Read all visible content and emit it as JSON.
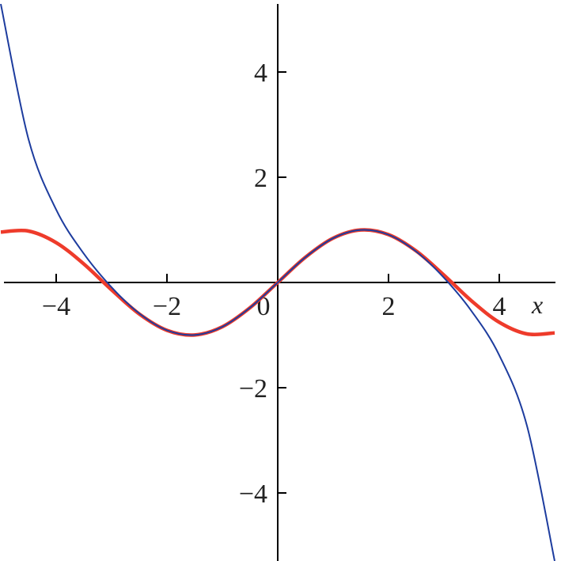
{
  "chart_data": {
    "type": "line",
    "title": "",
    "xlabel": "x",
    "ylabel": "",
    "xlim": [
      -5,
      5
    ],
    "ylim": [
      -5.3,
      5.3
    ],
    "grid": false,
    "x_ticks": [
      {
        "value": -4,
        "label": "−4"
      },
      {
        "value": -2,
        "label": "−2"
      },
      {
        "value": 0,
        "label": "0"
      },
      {
        "value": 2,
        "label": "2"
      },
      {
        "value": 4,
        "label": "4"
      }
    ],
    "y_ticks": [
      {
        "value": 4,
        "label": "4"
      },
      {
        "value": 2,
        "label": "2"
      },
      {
        "value": -2,
        "label": "−2"
      },
      {
        "value": -4,
        "label": "−4"
      }
    ],
    "x": [
      -5,
      -4.5,
      -4,
      -3.5,
      -3,
      -2.5,
      -2,
      -1.5,
      -1,
      -0.5,
      0,
      0.5,
      1,
      1.5,
      2,
      2.5,
      3,
      3.5,
      4,
      4.5,
      5
    ],
    "series": [
      {
        "color": "#ee3b2b",
        "width": 4.5,
        "values": [
          0.9589,
          0.9775,
          0.7568,
          0.3508,
          -0.1411,
          -0.5985,
          -0.9093,
          -0.9975,
          -0.8415,
          -0.4794,
          0,
          0.4794,
          0.8415,
          0.9975,
          0.9093,
          0.5985,
          0.1411,
          -0.3508,
          -0.7568,
          -0.9775,
          -0.9589
        ]
      },
      {
        "color": "#1d3c9e",
        "width": 2,
        "values": [
          5.2926,
          2.7243,
          1.3842,
          0.5456,
          -0.0911,
          -0.5885,
          -0.9079,
          -0.9974,
          -0.8415,
          -0.4794,
          0,
          0.4794,
          0.8415,
          0.9974,
          0.9079,
          0.5885,
          0.0911,
          -0.5456,
          -1.3842,
          -2.7243,
          -5.2926
        ]
      }
    ]
  }
}
